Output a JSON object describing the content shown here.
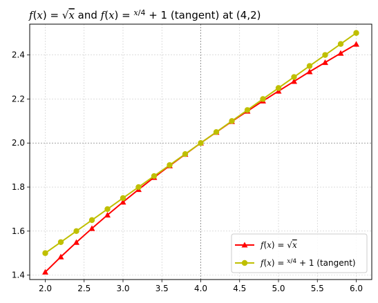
{
  "chart_data": {
    "type": "line",
    "title": {
      "part1": "f(x) = √x",
      "part2": " and ",
      "part3": "f(x) = x/4 + 1",
      "part4": " (tangent) at (4,2)"
    },
    "xlabel": "",
    "ylabel": "",
    "xlim": [
      1.8,
      6.2
    ],
    "ylim": [
      1.38,
      2.54
    ],
    "x_ticks": [
      2.0,
      2.5,
      3.0,
      3.5,
      4.0,
      4.5,
      5.0,
      5.5,
      6.0
    ],
    "x_tick_labels": [
      "2.0",
      "2.5",
      "3.0",
      "3.5",
      "4.0",
      "4.5",
      "5.0",
      "5.5",
      "6.0"
    ],
    "y_ticks": [
      1.4,
      1.6,
      1.8,
      2.0,
      2.2,
      2.4
    ],
    "y_tick_labels": [
      "1.4",
      "1.6",
      "1.8",
      "2.0",
      "2.2",
      "2.4"
    ],
    "grid": true,
    "reference_lines": {
      "x": 4.0,
      "y": 2.0
    },
    "legend_position": "lower-right",
    "x": [
      2.0,
      2.2,
      2.4,
      2.6,
      2.8,
      3.0,
      3.2,
      3.4,
      3.6,
      3.8,
      4.0,
      4.2,
      4.4,
      4.6,
      4.8,
      5.0,
      5.2,
      5.4,
      5.6,
      5.8,
      6.0
    ],
    "series": [
      {
        "name": "f(x) = √x",
        "color": "#ff0000",
        "marker": "triangle",
        "values": [
          1.414,
          1.483,
          1.549,
          1.612,
          1.673,
          1.732,
          1.789,
          1.844,
          1.897,
          1.949,
          2.0,
          2.049,
          2.098,
          2.145,
          2.191,
          2.236,
          2.28,
          2.324,
          2.366,
          2.408,
          2.449
        ]
      },
      {
        "name": "f(x) = x/4 + 1 (tangent)",
        "color": "#bfbf00",
        "marker": "circle",
        "values": [
          1.5,
          1.55,
          1.6,
          1.65,
          1.7,
          1.75,
          1.8,
          1.85,
          1.9,
          1.95,
          2.0,
          2.05,
          2.1,
          2.15,
          2.2,
          2.25,
          2.3,
          2.35,
          2.4,
          2.45,
          2.5
        ]
      }
    ]
  }
}
